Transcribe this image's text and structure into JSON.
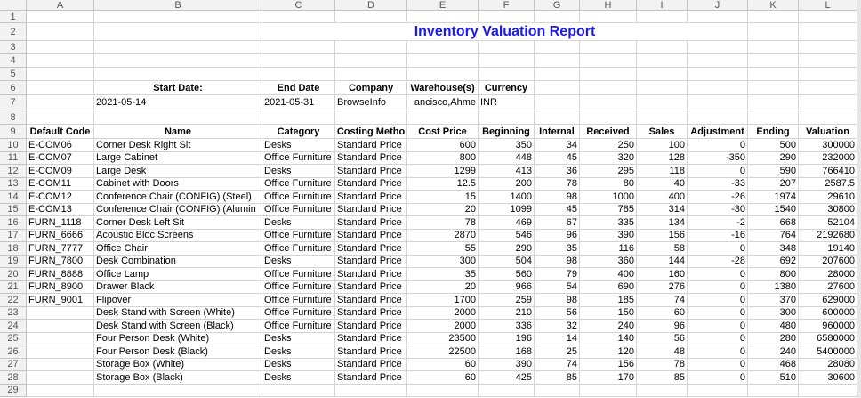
{
  "column_headers": [
    "A",
    "B",
    "C",
    "D",
    "E",
    "F",
    "G",
    "H",
    "I",
    "J",
    "K",
    "L"
  ],
  "row_headers": [
    1,
    2,
    3,
    4,
    5,
    6,
    7,
    8,
    9,
    10,
    11,
    12,
    13,
    14,
    15,
    16,
    17,
    18,
    19,
    20,
    21,
    22,
    23,
    24,
    25,
    26,
    27,
    28,
    29
  ],
  "title": "Inventory Valuation Report",
  "filters": {
    "labels": [
      "Start Date:",
      "End Date",
      "Company",
      "Warehouse(s)",
      "Currency"
    ],
    "values": [
      "2021-05-14",
      "2021-05-31",
      "BrowseInfo",
      "ancisco,Ahme",
      "INR"
    ]
  },
  "table": {
    "header": [
      "Default Code",
      "Name",
      "Category",
      "Costing Metho",
      "Cost Price",
      "Beginning",
      "Internal",
      "Received",
      "Sales",
      "Adjustment",
      "Ending",
      "Valuation"
    ],
    "rows": [
      [
        "E-COM06",
        "Corner Desk Right Sit",
        "Desks",
        "Standard Price",
        600,
        350,
        34,
        250,
        100,
        0,
        500,
        300000
      ],
      [
        "E-COM07",
        "Large Cabinet",
        "Office Furniture",
        "Standard Price",
        800,
        448,
        45,
        320,
        128,
        -350,
        290,
        232000
      ],
      [
        "E-COM09",
        "Large Desk",
        "Desks",
        "Standard Price",
        1299,
        413,
        36,
        295,
        118,
        0,
        590,
        766410
      ],
      [
        "E-COM11",
        "Cabinet with Doors",
        "Office Furniture",
        "Standard Price",
        12.5,
        200,
        78,
        80,
        40,
        -33,
        207,
        2587.5
      ],
      [
        "E-COM12",
        "Conference Chair (CONFIG) (Steel)",
        "Office Furniture",
        "Standard Price",
        15,
        1400,
        98,
        1000,
        400,
        -26,
        1974,
        29610
      ],
      [
        "E-COM13",
        "Conference Chair (CONFIG) (Alumin",
        "Office Furniture",
        "Standard Price",
        20,
        1099,
        45,
        785,
        314,
        -30,
        1540,
        30800
      ],
      [
        "FURN_1118",
        "Corner Desk Left Sit",
        "Desks",
        "Standard Price",
        78,
        469,
        67,
        335,
        134,
        -2,
        668,
        52104
      ],
      [
        "FURN_6666",
        "Acoustic Bloc Screens",
        "Office Furniture",
        "Standard Price",
        2870,
        546,
        96,
        390,
        156,
        -16,
        764,
        2192680
      ],
      [
        "FURN_7777",
        "Office Chair",
        "Office Furniture",
        "Standard Price",
        55,
        290,
        35,
        116,
        58,
        0,
        348,
        19140
      ],
      [
        "FURN_7800",
        "Desk Combination",
        "Desks",
        "Standard Price",
        300,
        504,
        98,
        360,
        144,
        -28,
        692,
        207600
      ],
      [
        "FURN_8888",
        "Office Lamp",
        "Office Furniture",
        "Standard Price",
        35,
        560,
        79,
        400,
        160,
        0,
        800,
        28000
      ],
      [
        "FURN_8900",
        "Drawer Black",
        "Office Furniture",
        "Standard Price",
        20,
        966,
        54,
        690,
        276,
        0,
        1380,
        27600
      ],
      [
        "FURN_9001",
        "Flipover",
        "Office Furniture",
        "Standard Price",
        1700,
        259,
        98,
        185,
        74,
        0,
        370,
        629000
      ],
      [
        null,
        "Desk Stand with Screen (White)",
        "Office Furniture",
        "Standard Price",
        2000,
        210,
        56,
        150,
        60,
        0,
        300,
        600000
      ],
      [
        null,
        "Desk Stand with Screen (Black)",
        "Office Furniture",
        "Standard Price",
        2000,
        336,
        32,
        240,
        96,
        0,
        480,
        960000
      ],
      [
        null,
        "Four Person Desk (White)",
        "Desks",
        "Standard Price",
        23500,
        196,
        14,
        140,
        56,
        0,
        280,
        6580000
      ],
      [
        null,
        "Four Person Desk (Black)",
        "Desks",
        "Standard Price",
        22500,
        168,
        25,
        120,
        48,
        0,
        240,
        5400000
      ],
      [
        null,
        "Storage Box (White)",
        "Desks",
        "Standard Price",
        60,
        390,
        74,
        156,
        78,
        0,
        468,
        28080
      ],
      [
        null,
        "Storage Box (Black)",
        "Desks",
        "Standard Price",
        60,
        425,
        85,
        170,
        85,
        0,
        510,
        30600
      ]
    ]
  }
}
